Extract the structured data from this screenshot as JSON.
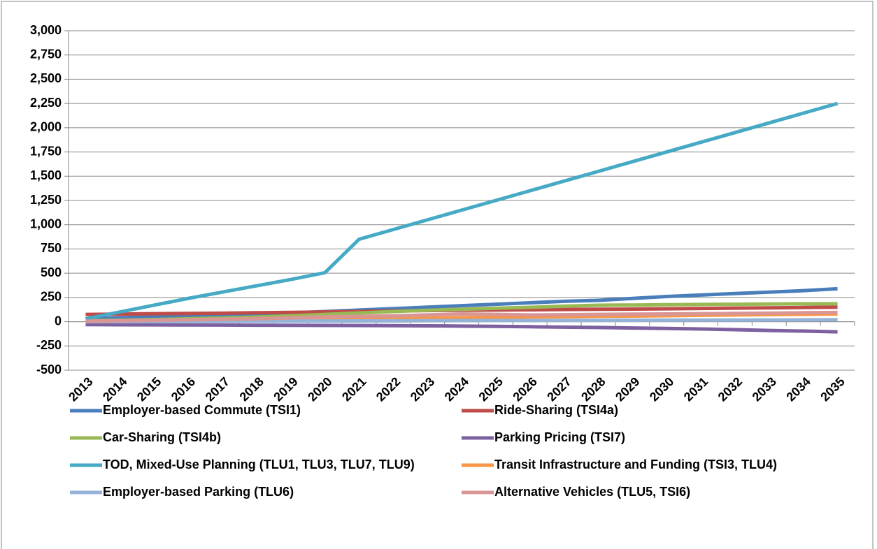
{
  "chart_data": {
    "type": "line",
    "categories": [
      "2013",
      "2014",
      "2015",
      "2016",
      "2017",
      "2018",
      "2019",
      "2020",
      "2021",
      "2022",
      "2023",
      "2024",
      "2025",
      "2026",
      "2027",
      "2028",
      "2029",
      "2030",
      "2031",
      "2032",
      "2033",
      "2034",
      "2035"
    ],
    "ylim": [
      -500,
      3000
    ],
    "yticks": [
      -500,
      -250,
      0,
      250,
      500,
      750,
      {
        "value": 1000,
        "label": "1,000"
      },
      {
        "value": 1250,
        "label": "1,250"
      },
      {
        "value": 1500,
        "label": "1,500"
      },
      {
        "value": 1750,
        "label": "1,750"
      },
      {
        "value": 2000,
        "label": "2,000"
      },
      {
        "value": 2250,
        "label": "2,250"
      },
      {
        "value": 2500,
        "label": "2,500"
      },
      {
        "value": 2750,
        "label": "2,750"
      },
      {
        "value": 3000,
        "label": "3,000"
      }
    ],
    "grid": true,
    "legend": "bottom",
    "series": [
      {
        "name": "Employer-based Commute (TSI1)",
        "color": "#4a7ebb",
        "values": [
          30,
          40,
          50,
          55,
          65,
          75,
          90,
          105,
          120,
          135,
          150,
          165,
          180,
          195,
          210,
          220,
          240,
          260,
          275,
          290,
          305,
          320,
          340
        ]
      },
      {
        "name": "Ride-Sharing (TSI4a)",
        "color": "#be4b48",
        "values": [
          75,
          78,
          82,
          85,
          88,
          92,
          96,
          100,
          105,
          110,
          115,
          118,
          120,
          123,
          126,
          128,
          130,
          133,
          136,
          140,
          143,
          146,
          150
        ]
      },
      {
        "name": "Car-Sharing (TSI4b)",
        "color": "#98b954",
        "values": [
          10,
          15,
          22,
          30,
          38,
          48,
          60,
          75,
          90,
          105,
          118,
          128,
          138,
          148,
          160,
          170,
          172,
          175,
          178,
          180,
          182,
          184,
          185
        ]
      },
      {
        "name": "Parking Pricing (TSI7)",
        "color": "#7d60a0",
        "values": [
          -30,
          -32,
          -33,
          -34,
          -35,
          -36,
          -37,
          -38,
          -39,
          -41,
          -43,
          -45,
          -48,
          -52,
          -56,
          -60,
          -65,
          -70,
          -75,
          -82,
          -90,
          -97,
          -105
        ]
      },
      {
        "name": "TOD, Mixed-Use Planning (TLU1, TLU3, TLU7, TLU9)",
        "color": "#46aac5",
        "values": [
          30,
          100,
          170,
          240,
          305,
          370,
          435,
          505,
          850,
          950,
          1050,
          1150,
          1250,
          1350,
          1450,
          1550,
          1650,
          1750,
          1850,
          1950,
          2050,
          2150,
          2250
        ]
      },
      {
        "name": "Transit Infrastructure and Funding (TSI3, TLU4)",
        "color": "#f79646",
        "values": [
          0,
          2,
          5,
          8,
          12,
          16,
          20,
          24,
          28,
          32,
          36,
          40,
          44,
          48,
          52,
          55,
          58,
          62,
          66,
          70,
          73,
          76,
          80
        ]
      },
      {
        "name": "Employer-based Parking (TLU6)",
        "color": "#95b3d7",
        "values": [
          0,
          1,
          2,
          3,
          4,
          5,
          6,
          7,
          8,
          9,
          10,
          11,
          12,
          12,
          13,
          14,
          15,
          16,
          17,
          17,
          18,
          19,
          20
        ]
      },
      {
        "name": "Alternative Vehicles (TLU5, TSI6)",
        "color": "#d99694",
        "values": [
          5,
          10,
          15,
          20,
          25,
          30,
          40,
          50,
          55,
          60,
          70,
          80,
          75,
          70,
          72,
          75,
          78,
          80,
          82,
          85,
          88,
          92,
          95
        ]
      }
    ]
  }
}
